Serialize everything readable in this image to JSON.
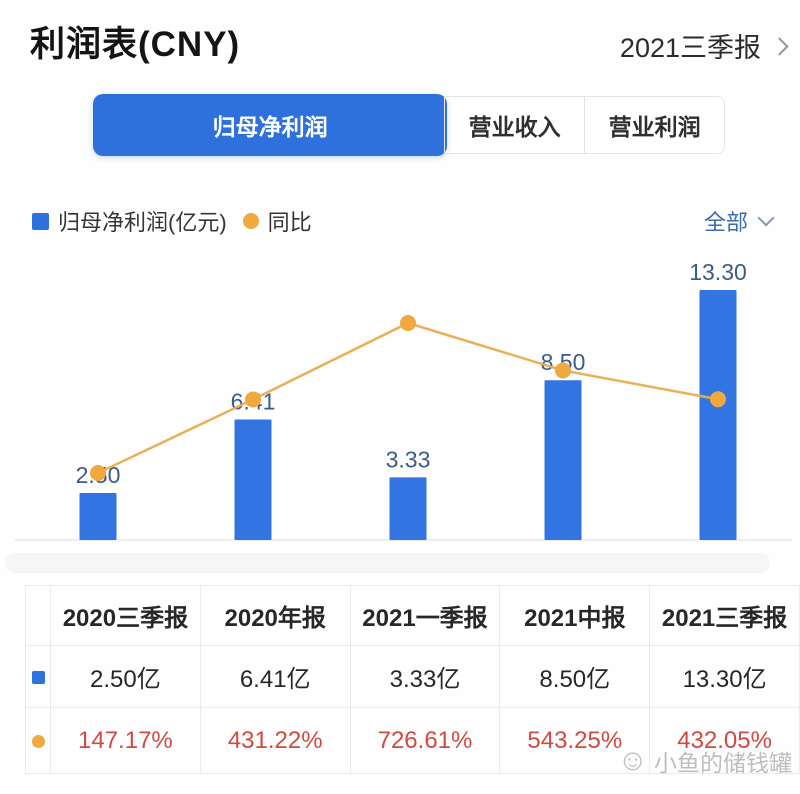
{
  "header": {
    "title": "利润表(CNY)",
    "period": "2021三季报",
    "chevron_right_icon": "›"
  },
  "tabs": [
    {
      "label": "归母净利润",
      "active": true
    },
    {
      "label": "营业收入",
      "active": false
    },
    {
      "label": "营业利润",
      "active": false
    }
  ],
  "legend": {
    "bar_label": "归母净利润(亿元)",
    "line_label": "同比",
    "filter_label": "全部",
    "chevron_down_icon": "⌄"
  },
  "chart_data": {
    "type": "bar+line",
    "categories": [
      "2020三季报",
      "2020年报",
      "2021一季报",
      "2021中报",
      "2021三季报"
    ],
    "series": [
      {
        "name": "归母净利润(亿元)",
        "type": "bar",
        "values": [
          2.5,
          6.41,
          3.33,
          8.5,
          13.3
        ],
        "labels": [
          "2.50",
          "6.41",
          "3.33",
          "8.50",
          "13.30"
        ],
        "color": "#3274e2",
        "label_color": "#3b5c86"
      },
      {
        "name": "同比",
        "type": "line",
        "values": [
          147.17,
          431.22,
          726.61,
          543.25,
          432.05
        ],
        "unit": "%",
        "color": "#e9ac4e",
        "marker_color": "#efa93e"
      }
    ],
    "title": "",
    "xlabel": "",
    "ylabel": "",
    "grid": false,
    "legend_position": "top-left",
    "value_labels": "above-bars"
  },
  "table": {
    "headers": [
      "",
      "2020三季报",
      "2020年报",
      "2021一季报",
      "2021中报",
      "2021三季报"
    ],
    "rows": [
      {
        "icon": "blue-square",
        "cells": [
          "2.50亿",
          "6.41亿",
          "3.33亿",
          "8.50亿",
          "13.30亿"
        ]
      },
      {
        "icon": "orange-dot",
        "cells": [
          "147.17%",
          "431.22%",
          "726.61%",
          "543.25%",
          "432.05%"
        ]
      }
    ]
  },
  "watermark": {
    "face_icon": "☺",
    "text": "小鱼的储钱罐"
  },
  "colors": {
    "accent_blue": "#2e71dc",
    "bar_blue": "#3274e2",
    "line_orange": "#e9ac4e",
    "marker_orange": "#efa93e",
    "pct_red": "#cf4a42",
    "link_blue": "#3c6ba6"
  }
}
